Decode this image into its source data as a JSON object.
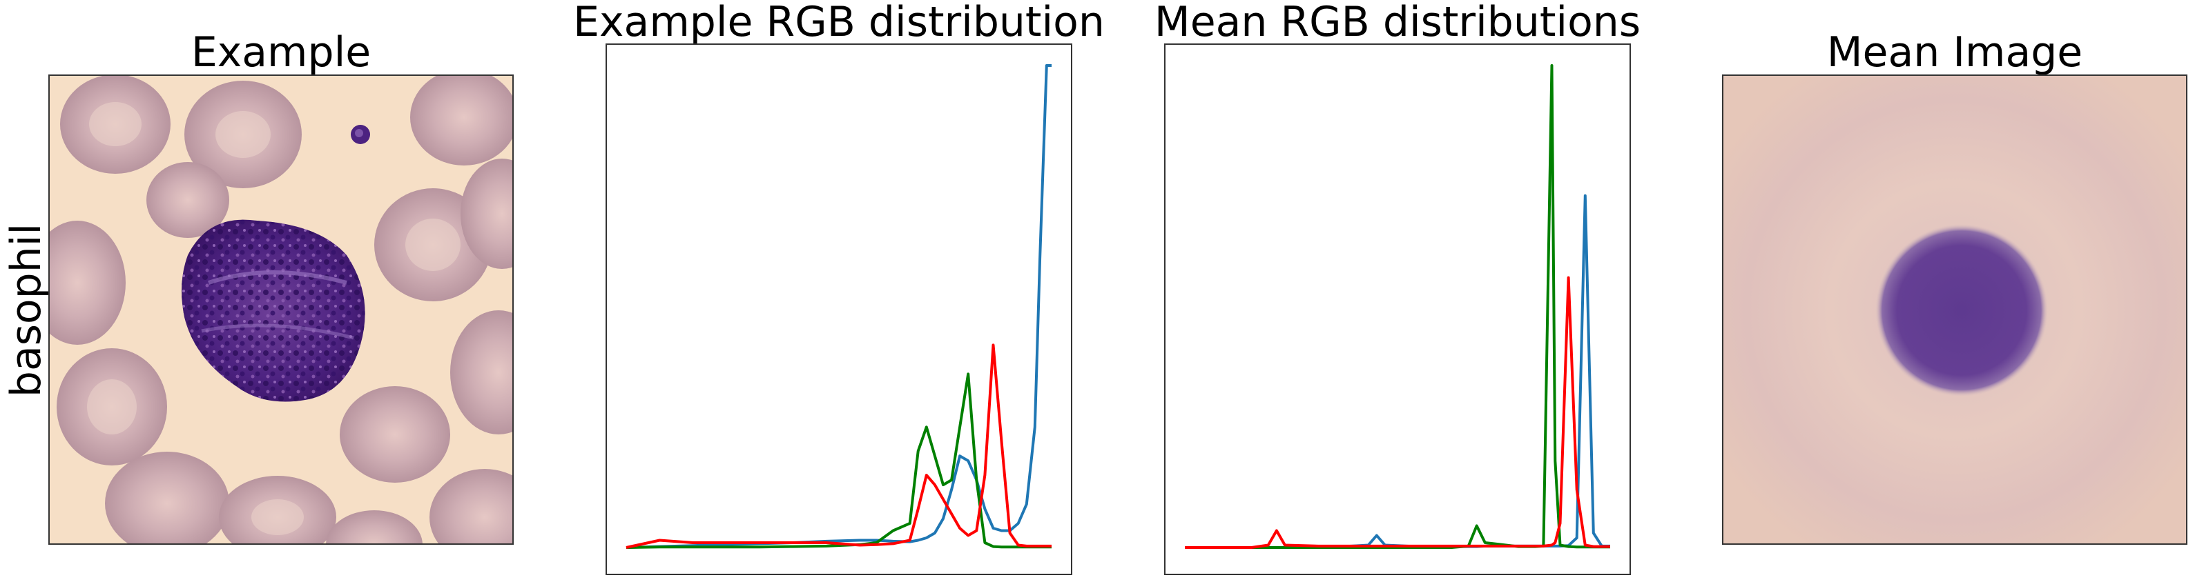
{
  "row_label": "basophil",
  "panels": {
    "example": {
      "title": "Example"
    },
    "example_rgb": {
      "title": "Example RGB distribution"
    },
    "mean_rgb": {
      "title": "Mean RGB distributions"
    },
    "mean_image": {
      "title": "Mean Image"
    }
  },
  "colors": {
    "blue": "#1f77b4",
    "green": "#008000",
    "red": "#ff0000"
  },
  "chart_data": [
    {
      "type": "line",
      "title": "Example RGB distribution",
      "x": [
        0,
        20,
        40,
        60,
        80,
        100,
        120,
        140,
        150,
        160,
        170,
        175,
        180,
        185,
        190,
        195,
        200,
        205,
        210,
        215,
        220,
        225,
        230,
        235,
        240,
        245,
        248,
        250,
        252,
        255
      ],
      "series": [
        {
          "name": "",
          "color": "blue",
          "values": [
            0,
            0.2,
            0.4,
            0.6,
            0.8,
            1.0,
            1.3,
            1.5,
            1.5,
            1.3,
            1.2,
            1.5,
            2.0,
            3.0,
            6.0,
            12.0,
            19.0,
            18.0,
            14.0,
            8.0,
            4.0,
            3.5,
            3.5,
            5.0,
            9.0,
            25.0,
            60.0,
            80.0,
            100.0,
            100.0
          ]
        },
        {
          "name": "",
          "color": "green",
          "values": [
            0,
            0.1,
            0.1,
            0.1,
            0.1,
            0.2,
            0.3,
            0.6,
            1.0,
            3.5,
            5.0,
            20.0,
            25.0,
            19.0,
            13.0,
            14.0,
            25.0,
            36.0,
            14.0,
            1.0,
            0.2,
            0.1,
            0.1,
            0.1,
            0.1,
            0.1,
            0.1,
            0.1,
            0.1,
            0.1
          ]
        },
        {
          "name": "",
          "color": "red",
          "values": [
            0,
            1.5,
            1.0,
            1.0,
            1.0,
            1.0,
            1.0,
            0.5,
            0.6,
            0.8,
            1.5,
            8.0,
            15.0,
            13.0,
            10.0,
            7.0,
            4.0,
            2.5,
            3.5,
            15.0,
            42.0,
            22.0,
            3.0,
            0.5,
            0.3,
            0.3,
            0.3,
            0.3,
            0.3,
            0.3
          ]
        }
      ]
    },
    {
      "type": "line",
      "title": "Mean RGB distributions",
      "x": [
        0,
        20,
        40,
        50,
        55,
        60,
        80,
        100,
        110,
        115,
        120,
        140,
        160,
        170,
        175,
        180,
        200,
        210,
        215,
        220,
        222,
        225,
        230,
        235,
        240,
        245,
        250,
        255
      ],
      "series": [
        {
          "name": "",
          "color": "blue",
          "values": [
            0,
            0,
            0,
            0,
            0,
            0,
            0,
            0.3,
            0.5,
            2.5,
            0.5,
            0.2,
            0.2,
            0.2,
            0.2,
            0.3,
            0.3,
            0.3,
            0.3,
            0.3,
            0.3,
            0.3,
            0.4,
            2.0,
            73.0,
            3.0,
            0.3,
            0.3
          ]
        },
        {
          "name": "",
          "color": "green",
          "values": [
            0,
            0,
            0,
            0,
            0,
            0,
            0,
            0,
            0,
            0,
            0,
            0,
            0,
            0.3,
            4.5,
            1.0,
            0.2,
            0.2,
            0.3,
            100.0,
            18.0,
            0.5,
            0.2,
            0.1,
            0.1,
            0.1,
            0.1,
            0.1
          ]
        },
        {
          "name": "",
          "color": "red",
          "values": [
            0,
            0,
            0,
            0.5,
            3.5,
            0.5,
            0.3,
            0.3,
            0.3,
            0.3,
            0.3,
            0.3,
            0.3,
            0.3,
            0.3,
            0.3,
            0.3,
            0.3,
            0.3,
            0.5,
            1.0,
            5.0,
            56.0,
            12.0,
            0.5,
            0.2,
            0.2,
            0.2
          ]
        }
      ]
    }
  ]
}
